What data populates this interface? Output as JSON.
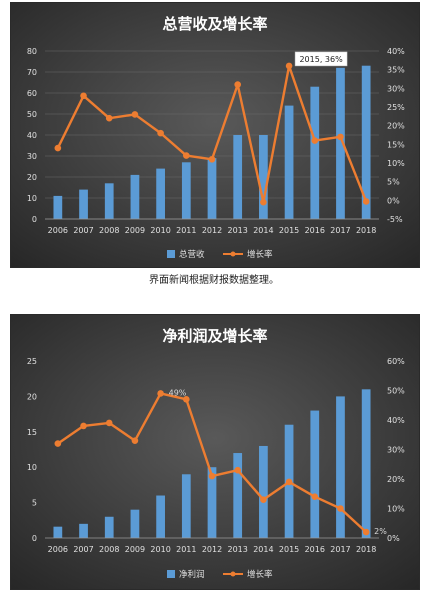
{
  "caption": "界面新闻根据财报数据整理。",
  "chart_data": [
    {
      "type": "bar",
      "title": "总营收及增长率",
      "categories": [
        "2006",
        "2007",
        "2008",
        "2009",
        "2010",
        "2011",
        "2012",
        "2013",
        "2014",
        "2015",
        "2016",
        "2017",
        "2018"
      ],
      "series": [
        {
          "name": "总营收",
          "type": "bar",
          "axis": "left",
          "color": "#5b9bd5",
          "values": [
            11,
            14,
            17,
            21,
            24,
            27,
            29,
            40,
            40,
            54,
            63,
            72,
            73
          ]
        },
        {
          "name": "增长率",
          "type": "line",
          "axis": "right",
          "unit": "%",
          "color": "#ed7d31",
          "values": [
            14,
            28,
            22,
            23,
            18,
            12,
            11,
            31,
            -0.5,
            36,
            16,
            17,
            -0.3
          ]
        }
      ],
      "ylim_left": [
        0,
        80
      ],
      "yticks_left": [
        0,
        10,
        20,
        30,
        40,
        50,
        60,
        70,
        80
      ],
      "ylim_right": [
        -5,
        40
      ],
      "yticks_right": [
        "-5%",
        "0%",
        "5%",
        "10%",
        "15%",
        "20%",
        "25%",
        "30%",
        "35%",
        "40%"
      ],
      "annotation": {
        "text": "2015, 36%",
        "index": 9
      },
      "grid": true,
      "legend": "bottom"
    },
    {
      "type": "bar",
      "title": "净利润及增长率",
      "categories": [
        "2006",
        "2007",
        "2008",
        "2009",
        "2010",
        "2011",
        "2012",
        "2013",
        "2014",
        "2015",
        "2016",
        "2017",
        "2018"
      ],
      "series": [
        {
          "name": "净利润",
          "type": "bar",
          "axis": "left",
          "color": "#5b9bd5",
          "values": [
            1.6,
            2,
            3,
            4,
            6,
            9,
            10,
            12,
            13,
            16,
            18,
            20,
            21
          ]
        },
        {
          "name": "增长率",
          "type": "line",
          "axis": "right",
          "unit": "%",
          "color": "#ed7d31",
          "values": [
            32,
            38,
            39,
            33,
            49,
            47,
            21,
            23,
            13,
            19,
            14,
            10,
            2
          ]
        }
      ],
      "ylim_left": [
        0,
        25
      ],
      "yticks_left": [
        0,
        5,
        10,
        15,
        20,
        25
      ],
      "ylim_right": [
        0,
        60
      ],
      "yticks_right": [
        "0%",
        "10%",
        "20%",
        "30%",
        "40%",
        "50%",
        "60%"
      ],
      "data_labels": [
        {
          "text": "49%",
          "index": 4
        },
        {
          "text": "2%",
          "index": 12
        }
      ],
      "grid": false,
      "legend": "bottom"
    }
  ]
}
